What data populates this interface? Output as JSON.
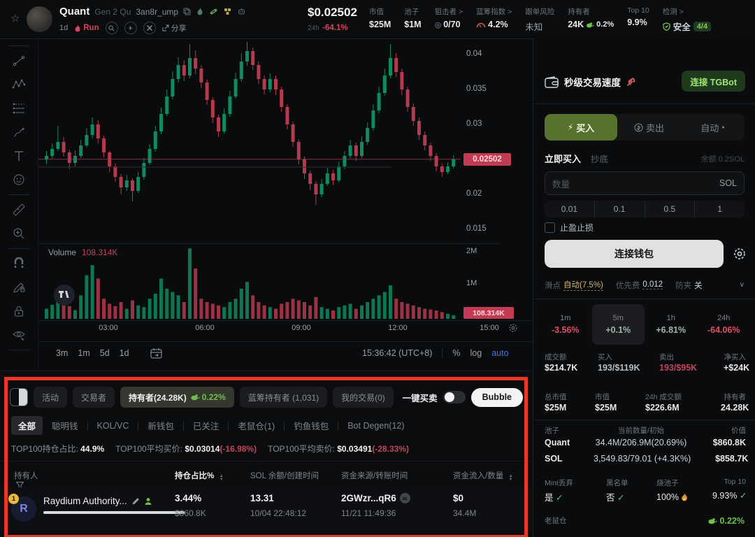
{
  "icons": {
    "star": "☆",
    "lightning": "⚡",
    "check": "✓",
    "sort_up": "▲",
    "sort_down": "▼",
    "chevron_down": "∨",
    "target": "◎",
    "plane": "✈",
    "dot": "●"
  },
  "header": {
    "token_name": "Quant",
    "token_gen": "Gen 2 Qu",
    "token_address": "3an8r_ump",
    "age": "1d",
    "run_label": "Run",
    "share_label": "分享",
    "price": "$0.02502",
    "change_period": "24h",
    "change_value": "-64.1%",
    "stats": [
      {
        "label": "市值",
        "value": "$25M"
      },
      {
        "label": "池子",
        "value": "$1M"
      },
      {
        "label": "狙击者 >",
        "value": "0/70"
      },
      {
        "label": "蓝筹指数 >",
        "value": "4.2%"
      },
      {
        "label": "跟单风险",
        "value": "未知"
      },
      {
        "label": "持有者",
        "value": "24K",
        "extra": "0.2%"
      },
      {
        "label": "Top 10",
        "value": "9.9%"
      },
      {
        "label": "检测 >",
        "value": "安全",
        "badge": "4/4"
      }
    ]
  },
  "chart": {
    "type": "candlestick",
    "price_scale": 0.001,
    "volume_unit": "K",
    "up_color": "#0f8a62",
    "down_color": "#b43a4e",
    "price_line_color": "#c23b52",
    "price_ticks": [
      "0.04",
      "0.035",
      "0.03",
      "0.02",
      "0.015"
    ],
    "current_price": "0.02502",
    "volume_label": "Volume",
    "volume_value": "108.314K",
    "volume_badge": "108.314K",
    "volume_ticks": [
      "2M",
      "1M"
    ],
    "time_ticks": [
      "03:00",
      "06:00",
      "09:00",
      "12:00",
      "15:00"
    ],
    "ranges": [
      "3m",
      "1m",
      "5d",
      "1d"
    ],
    "clock": "15:36:42 (UTC+8)",
    "percent_label": "%",
    "log_label": "log",
    "auto_label": "auto",
    "candles": [
      [
        25.0,
        26.2,
        24.3,
        25.5,
        300
      ],
      [
        25.5,
        27.3,
        25.1,
        26.5,
        420
      ],
      [
        26.5,
        29.8,
        26.2,
        27.5,
        900
      ],
      [
        27.5,
        28.2,
        25.4,
        26.0,
        500
      ],
      [
        26.0,
        26.4,
        23.6,
        24.5,
        380
      ],
      [
        24.5,
        26.3,
        24.0,
        25.5,
        260
      ],
      [
        25.5,
        27.8,
        25.2,
        27.0,
        700
      ],
      [
        27.0,
        29.5,
        26.7,
        28.5,
        1300
      ],
      [
        28.5,
        31.0,
        28.0,
        30.0,
        1600
      ],
      [
        30.0,
        30.6,
        27.3,
        28.0,
        1200
      ],
      [
        28.0,
        28.4,
        25.3,
        26.0,
        600
      ],
      [
        26.0,
        26.2,
        23.2,
        24.0,
        450
      ],
      [
        24.0,
        24.4,
        21.8,
        22.5,
        380
      ],
      [
        22.5,
        22.9,
        20.0,
        21.0,
        500
      ],
      [
        21.0,
        22.8,
        20.5,
        22.0,
        300
      ],
      [
        22.0,
        22.3,
        19.0,
        20.5,
        550
      ],
      [
        20.5,
        23.2,
        20.2,
        22.5,
        400
      ],
      [
        22.5,
        25.2,
        22.1,
        24.5,
        350
      ],
      [
        24.5,
        27.2,
        24.2,
        26.5,
        600
      ],
      [
        26.5,
        29.8,
        26.1,
        29.0,
        750
      ],
      [
        29.0,
        32.4,
        28.6,
        31.5,
        1200
      ],
      [
        31.5,
        35.0,
        31.2,
        34.0,
        900
      ],
      [
        34.0,
        37.6,
        33.6,
        36.5,
        800
      ],
      [
        36.5,
        39.6,
        36.0,
        38.5,
        700
      ],
      [
        38.5,
        39.2,
        36.2,
        37.0,
        500
      ],
      [
        37.0,
        41.5,
        36.6,
        39.5,
        2100
      ],
      [
        39.5,
        40.6,
        37.2,
        38.0,
        1500
      ],
      [
        38.0,
        38.5,
        35.2,
        36.0,
        600
      ],
      [
        36.0,
        36.4,
        32.8,
        33.5,
        500
      ],
      [
        33.5,
        33.9,
        30.2,
        31.0,
        450
      ],
      [
        31.0,
        31.4,
        28.2,
        29.0,
        400
      ],
      [
        29.0,
        32.3,
        28.7,
        31.5,
        350
      ],
      [
        31.5,
        34.8,
        31.1,
        34.0,
        500
      ],
      [
        34.0,
        37.4,
        33.7,
        36.5,
        600
      ],
      [
        36.5,
        40.2,
        36.1,
        39.0,
        900
      ],
      [
        39.0,
        41.8,
        38.4,
        40.5,
        1100
      ],
      [
        40.5,
        41.0,
        37.8,
        38.5,
        700
      ],
      [
        38.5,
        39.0,
        35.8,
        36.5,
        500
      ],
      [
        36.5,
        37.0,
        34.3,
        35.0,
        400
      ],
      [
        35.0,
        37.3,
        34.6,
        36.5,
        350
      ],
      [
        36.5,
        37.0,
        34.2,
        35.0,
        300
      ],
      [
        35.0,
        35.4,
        31.8,
        32.5,
        450
      ],
      [
        32.5,
        32.9,
        29.3,
        30.0,
        500
      ],
      [
        30.0,
        30.4,
        26.8,
        27.5,
        600
      ],
      [
        27.5,
        27.9,
        24.3,
        25.0,
        550
      ],
      [
        25.0,
        25.4,
        22.2,
        23.0,
        500
      ],
      [
        23.0,
        23.4,
        20.6,
        21.5,
        400
      ],
      [
        21.5,
        21.9,
        18.5,
        20.0,
        650
      ],
      [
        20.0,
        22.2,
        19.6,
        21.5,
        350
      ],
      [
        21.5,
        23.8,
        21.2,
        23.0,
        300
      ],
      [
        23.0,
        23.5,
        21.3,
        22.0,
        250
      ],
      [
        22.0,
        24.7,
        21.7,
        24.0,
        350
      ],
      [
        24.0,
        26.2,
        23.6,
        25.5,
        400
      ],
      [
        25.5,
        27.8,
        25.1,
        27.0,
        450
      ],
      [
        27.0,
        27.4,
        24.8,
        25.5,
        300
      ],
      [
        25.5,
        28.3,
        25.2,
        27.5,
        400
      ],
      [
        27.5,
        30.3,
        27.1,
        29.5,
        500
      ],
      [
        29.5,
        32.9,
        29.1,
        32.0,
        600
      ],
      [
        32.0,
        35.4,
        31.6,
        34.5,
        700
      ],
      [
        34.5,
        38.0,
        34.1,
        37.0,
        800
      ],
      [
        37.0,
        41.5,
        36.6,
        39.5,
        1000
      ],
      [
        39.5,
        40.2,
        36.8,
        37.5,
        600
      ],
      [
        37.5,
        38.0,
        34.2,
        35.0,
        500
      ],
      [
        35.0,
        35.4,
        31.8,
        32.5,
        450
      ],
      [
        32.5,
        33.0,
        29.8,
        30.5,
        400
      ],
      [
        30.5,
        31.0,
        27.8,
        28.5,
        350
      ],
      [
        28.5,
        29.0,
        26.3,
        27.0,
        300
      ],
      [
        27.0,
        27.4,
        24.8,
        25.5,
        280
      ],
      [
        25.5,
        25.9,
        23.3,
        24.0,
        250
      ],
      [
        24.0,
        24.4,
        22.5,
        23.2,
        200
      ],
      [
        23.2,
        24.6,
        22.9,
        24.0,
        150
      ],
      [
        24.0,
        25.6,
        23.7,
        25.02,
        108
      ]
    ]
  },
  "panel": {
    "speed_title": "秒级交易速度",
    "tgbot_button": "连接 TGBot",
    "buy_tab": "买入",
    "sell_tab": "卖出",
    "auto_tab": "自动",
    "buy_now_label": "立即买入",
    "dip_label": "抄底",
    "balance_label": "余额 0.2SOL",
    "amount_placeholder": "数量",
    "amount_unit": "SOL",
    "quick_amounts": [
      "0.01",
      "0.1",
      "0.5",
      "1"
    ],
    "tp_sl_label": "止盈止损",
    "connect_wallet_label": "连接钱包",
    "slippage_label": "滑点",
    "slippage_value": "自动(7.5%)",
    "priority_label": "优先费",
    "priority_value": "0.012",
    "antimev_label": "防夹",
    "antimev_value": "关",
    "periods": [
      {
        "label": "1m",
        "value": "-3.56%"
      },
      {
        "label": "5m",
        "value": "+0.1%"
      },
      {
        "label": "1h",
        "value": "+6.81%"
      },
      {
        "label": "24h",
        "value": "-64.06%"
      }
    ],
    "stats_row1": [
      {
        "label": "成交额",
        "value": "$214.7K"
      },
      {
        "label": "买入",
        "value": "193/$119K"
      },
      {
        "label": "卖出",
        "value": "193/$95K"
      },
      {
        "label": "净买入",
        "value": "+$24K"
      }
    ],
    "stats_row2": [
      {
        "label": "总市值",
        "value": "$25M"
      },
      {
        "label": "市值",
        "value": "$25M"
      },
      {
        "label": "24h 成交额",
        "value": "$226.6M"
      },
      {
        "label": "持有者",
        "value": "24.28K"
      }
    ],
    "pool_headers": [
      "池子",
      "当前数量/初始",
      "价值"
    ],
    "pool_rows": [
      {
        "name": "Quant",
        "amount": "34.4M/206.9M(20.69%)",
        "value": "$860.8K"
      },
      {
        "name": "SOL",
        "amount": "3,549.83/79.01 (+4.3K%)",
        "value": "$858.7K"
      }
    ],
    "security": [
      {
        "label": "Mint丢弃",
        "value": "是"
      },
      {
        "label": "黑名单",
        "value": "否"
      },
      {
        "label": "烧池子",
        "value": "100%"
      },
      {
        "label": "Top 10",
        "value": "9.93%"
      }
    ],
    "rat_label": "老鼠仓",
    "rat_value": "0.22%"
  },
  "bottom": {
    "tabs": [
      {
        "label": "活动"
      },
      {
        "label": "交易者"
      },
      {
        "label": "持有者(24.28K)",
        "extra": "0.22%"
      },
      {
        "label": "蓝筹持有者 (1,031)"
      },
      {
        "label": "我的交易(0)"
      }
    ],
    "quick_trade_label": "一键买卖",
    "bubble_label": "Bubble",
    "filters": [
      "全部",
      "聪明钱",
      "KOL/VC",
      "新钱包",
      "已关注",
      "老鼠仓(1)",
      "钓鱼钱包",
      "Bot Degen(12)"
    ],
    "top100_stats": [
      {
        "label": "TOP100持仓占比:",
        "value": "44.9%",
        "delta": ""
      },
      {
        "label": "TOP100平均买价:",
        "value": "$0.03014",
        "delta": "(-16.98%)"
      },
      {
        "label": "TOP100平均卖价:",
        "value": "$0.03491",
        "delta": "(-28.33%)"
      }
    ],
    "table_headers": {
      "holder": "持有人",
      "position": "持仓占比%",
      "sol": "SOL 余额/创建时间",
      "source": "资金来源/转账时间",
      "inflow": "资金流入/数量"
    },
    "row": {
      "rank": "1",
      "name": "Raydium Authority...",
      "pct": "3.44%",
      "pct_sub": "$860.8K",
      "sol_balance": "13.31",
      "created": "10/04 22:48:12",
      "source": "2GWzr...qR6",
      "transfer_time": "11/21 11:49:36",
      "inflow": "$0",
      "amount": "34.4M"
    }
  }
}
